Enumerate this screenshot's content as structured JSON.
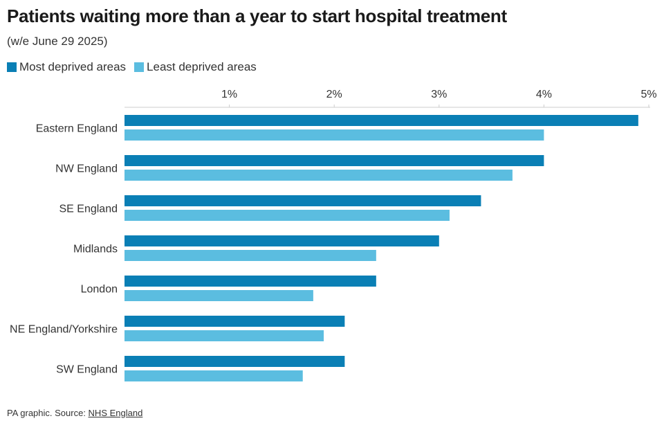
{
  "chart_data": {
    "type": "bar",
    "orientation": "horizontal",
    "title": "Patients waiting more than a year to start hospital treatment",
    "subtitle": "(w/e June 29 2025)",
    "categories": [
      "Eastern England",
      "NW England",
      "SE England",
      "Midlands",
      "London",
      "NE England/Yorkshire",
      "SW England"
    ],
    "series": [
      {
        "name": "Most deprived areas",
        "color": "#0a7fb5",
        "values": [
          4.9,
          4.0,
          3.4,
          3.0,
          2.4,
          2.1,
          2.1
        ]
      },
      {
        "name": "Least deprived areas",
        "color": "#5bbde0",
        "values": [
          4.0,
          3.7,
          3.1,
          2.4,
          1.8,
          1.9,
          1.7
        ]
      }
    ],
    "xticks": [
      1,
      2,
      3,
      4,
      5
    ],
    "xtick_labels": [
      "1%",
      "2%",
      "3%",
      "4%",
      "5%"
    ],
    "xlim": [
      0,
      5
    ],
    "legend_position": "top-left"
  },
  "footer": {
    "prefix": "PA graphic. Source: ",
    "link_text": "NHS England"
  }
}
